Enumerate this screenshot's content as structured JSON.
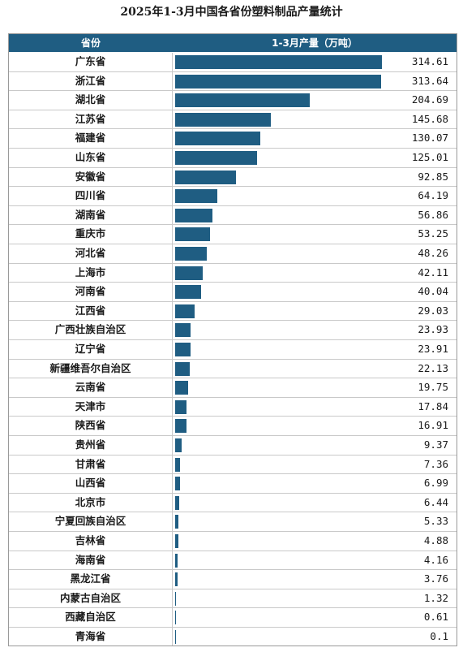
{
  "title": "2025年1-3月中国各省份塑料制品产量统计",
  "headers": {
    "province": "省份",
    "value": "1-3月产量（万吨）"
  },
  "colors": {
    "header_bg": "#1f5d82",
    "bar": "#1f5d82"
  },
  "chart_data": {
    "type": "bar",
    "orientation": "horizontal",
    "title": "2025年1-3月中国各省份塑料制品产量统计",
    "categories": [
      "广东省",
      "浙江省",
      "湖北省",
      "江苏省",
      "福建省",
      "山东省",
      "安徽省",
      "四川省",
      "湖南省",
      "重庆市",
      "河北省",
      "上海市",
      "河南省",
      "江西省",
      "广西壮族自治区",
      "辽宁省",
      "新疆维吾尔自治区",
      "云南省",
      "天津市",
      "陕西省",
      "贵州省",
      "甘肃省",
      "山西省",
      "北京市",
      "宁夏回族自治区",
      "吉林省",
      "海南省",
      "黑龙江省",
      "内蒙古自治区",
      "西藏自治区",
      "青海省"
    ],
    "values": [
      314.61,
      313.64,
      204.69,
      145.68,
      130.07,
      125.01,
      92.85,
      64.19,
      56.86,
      53.25,
      48.26,
      42.11,
      40.04,
      29.03,
      23.93,
      23.91,
      22.13,
      19.75,
      17.84,
      16.91,
      9.37,
      7.36,
      6.99,
      6.44,
      5.33,
      4.88,
      4.16,
      3.76,
      1.32,
      0.61,
      0.1
    ],
    "value_labels": [
      "314.61",
      "313.64",
      "204.69",
      "145.68",
      "130.07",
      "125.01",
      "92.85",
      "64.19",
      "56.86",
      "53.25",
      "48.26",
      "42.11",
      "40.04",
      "29.03",
      "23.93",
      "23.91",
      "22.13",
      "19.75",
      "17.84",
      "16.91",
      "9.37",
      "7.36",
      "6.99",
      "6.44",
      "5.33",
      "4.88",
      "4.16",
      "3.76",
      "1.32",
      "0.61",
      "0.1"
    ],
    "xlim": [
      0,
      314.61
    ]
  }
}
